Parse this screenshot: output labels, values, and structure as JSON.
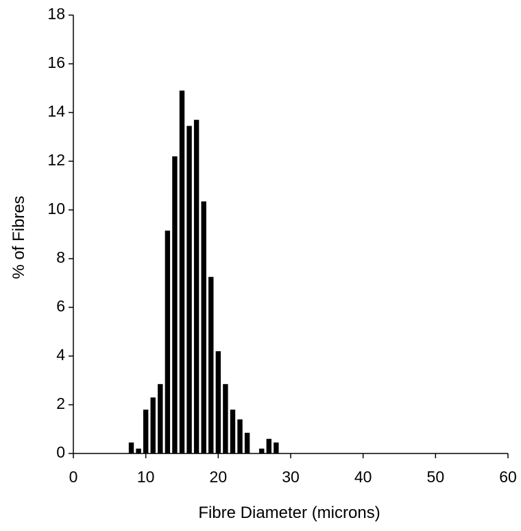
{
  "chart_data": {
    "type": "bar",
    "title": "",
    "xlabel": "Fibre Diameter (microns)",
    "ylabel": "% of Fibres",
    "xlim": [
      0,
      60
    ],
    "ylim": [
      0,
      18
    ],
    "x_ticks": [
      0,
      10,
      20,
      30,
      40,
      50,
      60
    ],
    "y_ticks": [
      0,
      2,
      4,
      6,
      8,
      10,
      12,
      14,
      16,
      18
    ],
    "grid": false,
    "legend": "none",
    "bar_color": "#000000",
    "x": [
      8,
      9,
      10,
      11,
      12,
      13,
      14,
      15,
      16,
      17,
      18,
      19,
      20,
      21,
      22,
      23,
      24,
      26,
      27,
      28
    ],
    "values": [
      0.45,
      0.2,
      1.8,
      2.3,
      2.85,
      9.15,
      12.2,
      14.9,
      13.45,
      13.7,
      10.35,
      7.25,
      4.2,
      2.85,
      1.8,
      1.4,
      0.85,
      0.2,
      0.6,
      0.45
    ]
  }
}
